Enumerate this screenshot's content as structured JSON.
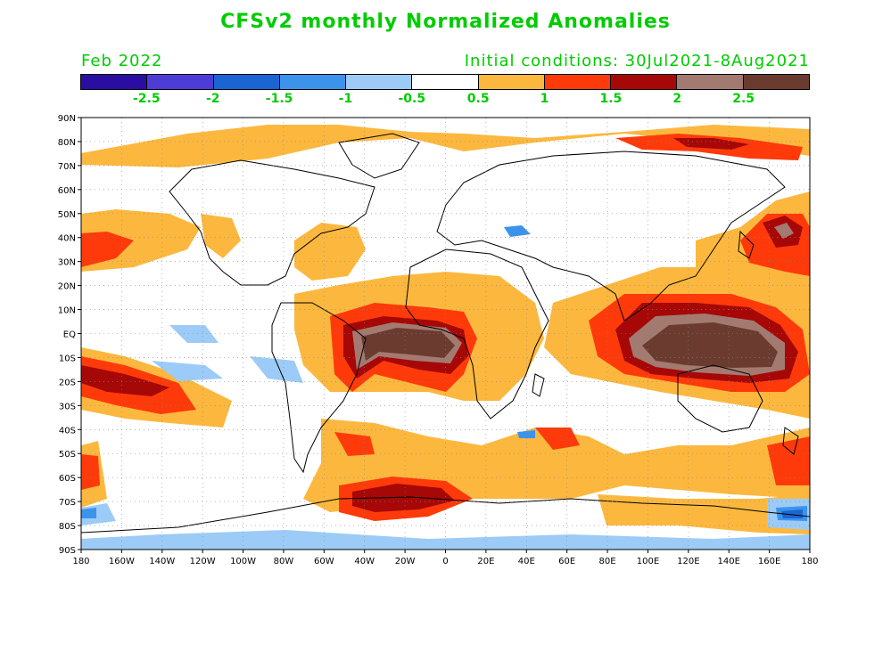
{
  "title": "CFSv2 monthly Normalized Anomalies",
  "forecast_month": "Feb 2022",
  "initial_conditions": "Initial conditions: 30Jul2021-8Aug2021",
  "colorbar": {
    "colors": [
      "#2a0da3",
      "#4e3cd6",
      "#1a64d4",
      "#3c93ec",
      "#9ccbf7",
      "#ffffff",
      "#fcb83e",
      "#ff3a0a",
      "#a60808",
      "#a37a70",
      "#6b3b30"
    ],
    "labels": [
      "-2.5",
      "-2",
      "-1.5",
      "-1",
      "-0.5",
      "0.5",
      "1",
      "1.5",
      "2",
      "2.5"
    ]
  },
  "map": {
    "lat_labels": [
      "90N",
      "80N",
      "70N",
      "60N",
      "50N",
      "40N",
      "30N",
      "20N",
      "10N",
      "EQ",
      "10S",
      "20S",
      "30S",
      "40S",
      "50S",
      "60S",
      "70S",
      "80S",
      "90S"
    ],
    "lon_labels": [
      "180",
      "160W",
      "140W",
      "120W",
      "100W",
      "80W",
      "60W",
      "40W",
      "20W",
      "0",
      "20E",
      "40E",
      "60E",
      "80E",
      "100E",
      "120E",
      "140E",
      "160E",
      "180"
    ]
  }
}
